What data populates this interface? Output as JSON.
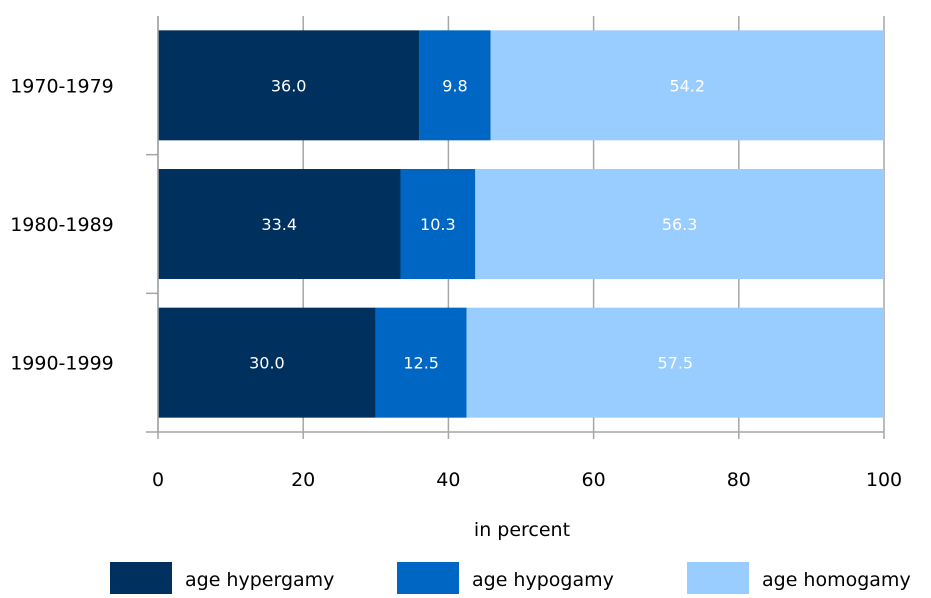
{
  "chart_data": {
    "type": "bar",
    "orientation": "horizontal",
    "stacked": true,
    "categories": [
      "1970-1979",
      "1980-1989",
      "1990-1999"
    ],
    "series": [
      {
        "name": "age hypergamy",
        "values": [
          36.0,
          33.4,
          30.0
        ],
        "color": "#00305e"
      },
      {
        "name": "age hypogamy",
        "values": [
          9.8,
          10.3,
          12.5
        ],
        "color": "#0066c4"
      },
      {
        "name": "age homogamy",
        "values": [
          54.2,
          56.3,
          57.5
        ],
        "color": "#99ccff"
      }
    ],
    "xlabel": "in percent",
    "xlim": [
      0,
      100
    ],
    "xticks": [
      0,
      20,
      40,
      60,
      80,
      100
    ],
    "grid": true,
    "legend_position": "bottom",
    "data_label_color": "#ffffff"
  }
}
